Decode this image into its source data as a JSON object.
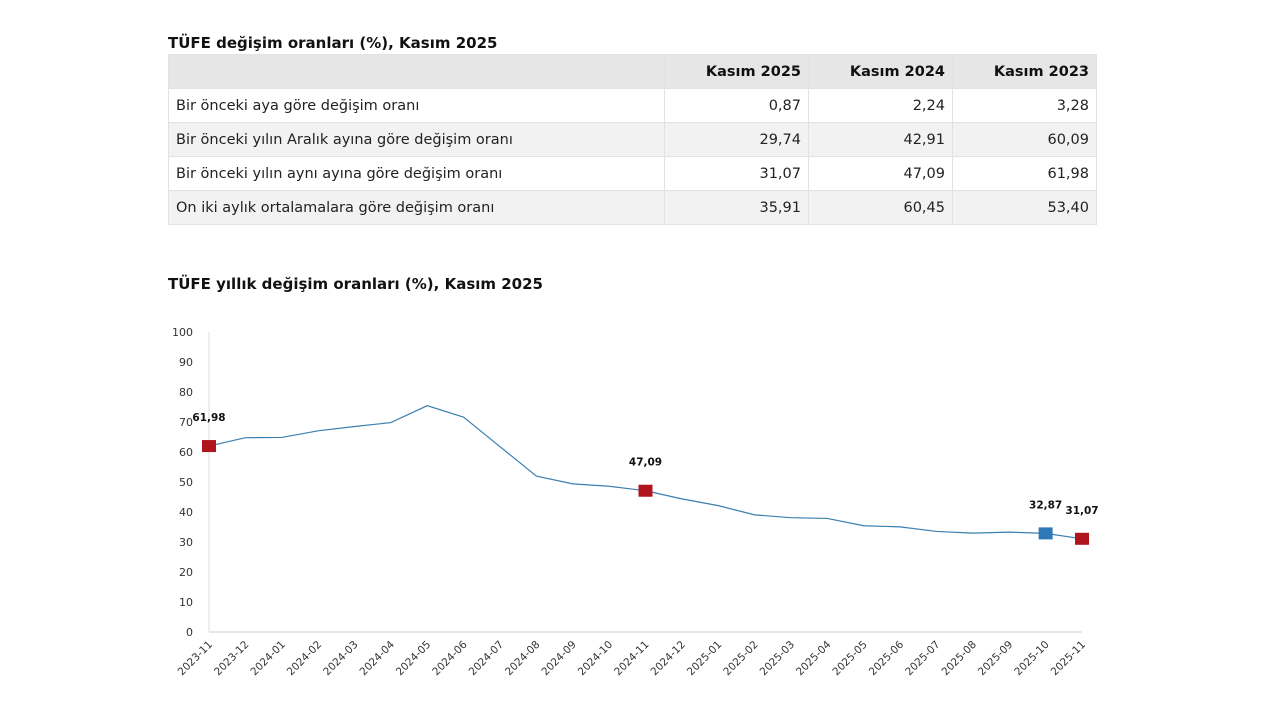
{
  "table": {
    "title": "TÜFE değişim oranları (%), Kasım 2025",
    "headers": [
      "",
      "Kasım 2025",
      "Kasım 2024",
      "Kasım 2023"
    ],
    "rows": [
      {
        "label": "Bir önceki aya göre değişim oranı",
        "values": [
          "0,87",
          "2,24",
          "3,28"
        ]
      },
      {
        "label": "Bir önceki yılın Aralık ayına göre değişim oranı",
        "values": [
          "29,74",
          "42,91",
          "60,09"
        ]
      },
      {
        "label": "Bir önceki yılın aynı ayına göre değişim oranı",
        "values": [
          "31,07",
          "47,09",
          "61,98"
        ]
      },
      {
        "label": "On iki aylık ortalamalara göre değişim oranı",
        "values": [
          "35,91",
          "60,45",
          "53,40"
        ]
      }
    ]
  },
  "chart_data": {
    "type": "line",
    "title": "TÜFE yıllık değişim oranları (%), Kasım 2025",
    "ylim": [
      0,
      100
    ],
    "yticks": [
      0,
      10,
      20,
      30,
      40,
      50,
      60,
      70,
      80,
      90,
      100
    ],
    "x": [
      "2023-11",
      "2023-12",
      "2024-01",
      "2024-02",
      "2024-03",
      "2024-04",
      "2024-05",
      "2024-06",
      "2024-07",
      "2024-08",
      "2024-09",
      "2024-10",
      "2024-11",
      "2024-12",
      "2025-01",
      "2025-02",
      "2025-03",
      "2025-04",
      "2025-05",
      "2025-06",
      "2025-07",
      "2025-08",
      "2025-09",
      "2025-10",
      "2025-11"
    ],
    "values": [
      61.98,
      64.77,
      64.86,
      67.07,
      68.5,
      69.8,
      75.45,
      71.6,
      61.78,
      51.97,
      49.38,
      48.58,
      47.09,
      44.38,
      42.12,
      39.05,
      38.1,
      37.86,
      35.41,
      35.05,
      33.52,
      32.95,
      33.29,
      32.87,
      31.07
    ],
    "markers": [
      {
        "index": 0,
        "label": "61,98",
        "color": "#b0141c"
      },
      {
        "index": 12,
        "label": "47,09",
        "color": "#b0141c"
      },
      {
        "index": 23,
        "label": "32,87",
        "color": "#2e78b7"
      },
      {
        "index": 24,
        "label": "31,07",
        "color": "#b0141c"
      }
    ],
    "line_color": "#3a7fb0"
  }
}
